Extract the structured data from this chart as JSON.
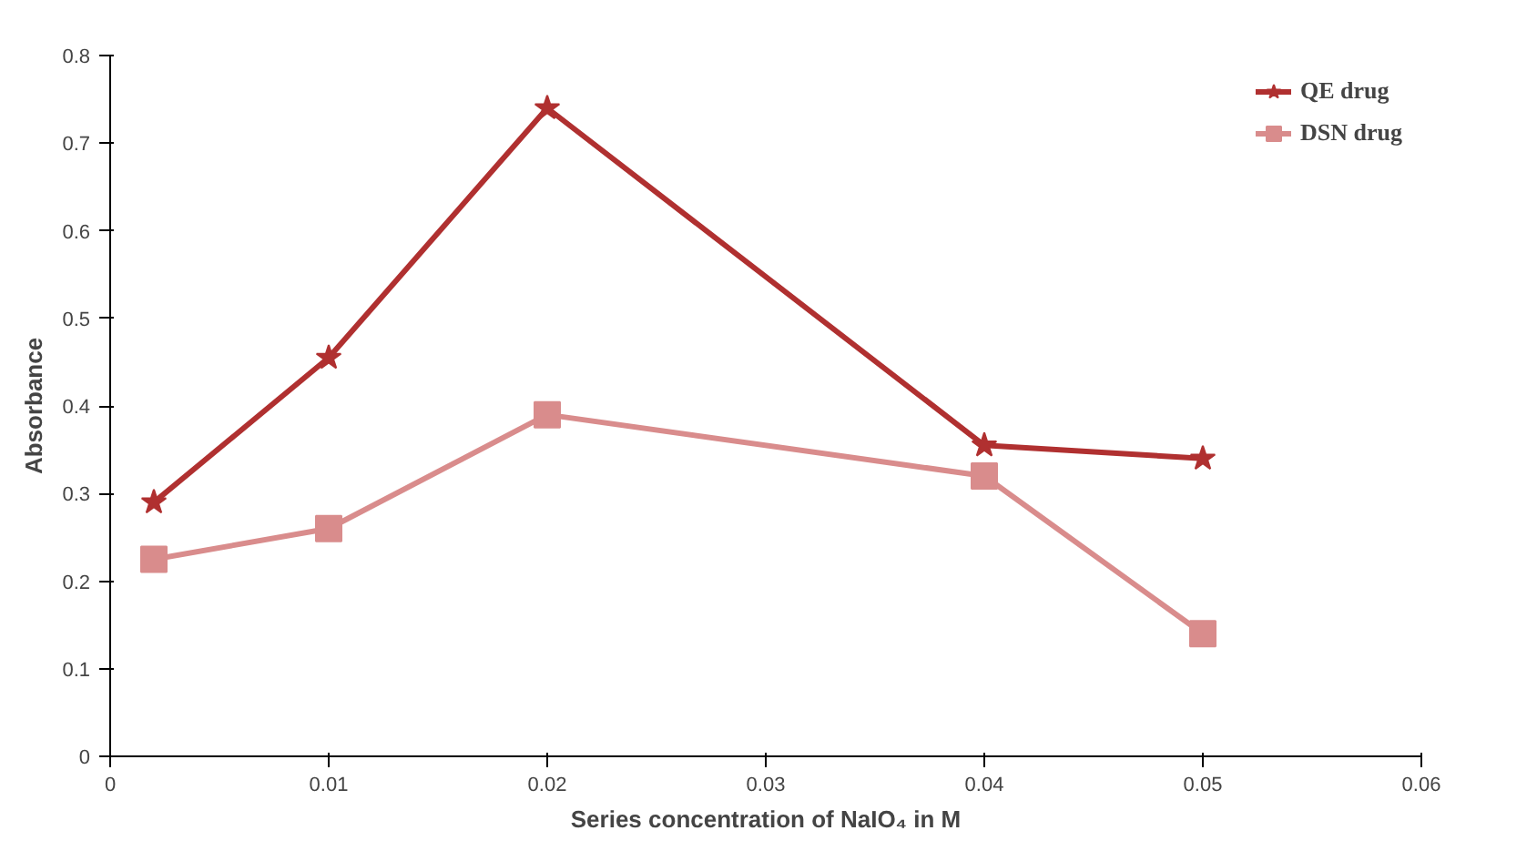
{
  "chart_data": {
    "type": "line",
    "xlabel": "Series concentration of NaIO₄ in M",
    "ylabel": "Absorbance",
    "x": [
      0.002,
      0.01,
      0.02,
      0.04,
      0.05
    ],
    "series": [
      {
        "name": "QE drug",
        "color": "#b03030",
        "values": [
          0.29,
          0.455,
          0.74,
          0.355,
          0.34
        ],
        "marker": "star"
      },
      {
        "name": "DSN drug",
        "color": "#d98c8c",
        "values": [
          0.225,
          0.26,
          0.39,
          0.32,
          0.14
        ],
        "marker": "square"
      }
    ],
    "xlim": [
      0,
      0.06
    ],
    "xticks": [
      0,
      0.01,
      0.02,
      0.03,
      0.04,
      0.05,
      0.06
    ],
    "ylim": [
      0,
      0.8
    ],
    "yticks": [
      0,
      0.1,
      0.2,
      0.3,
      0.4,
      0.5,
      0.6,
      0.7,
      0.8
    ],
    "grid": false,
    "legend": "top right"
  }
}
